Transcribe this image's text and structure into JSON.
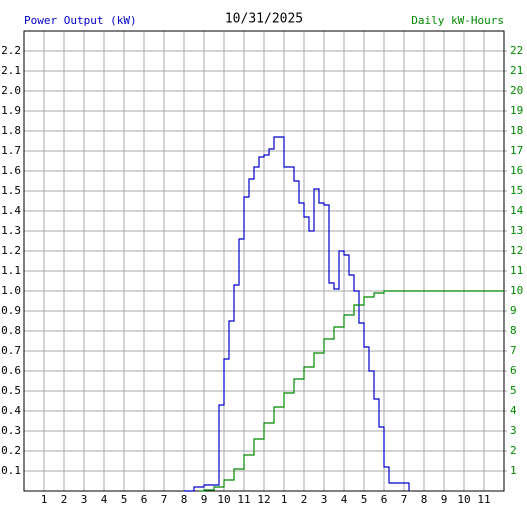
{
  "chart_data": {
    "type": "line",
    "steps": true,
    "grid": true,
    "title": "10/31/2025",
    "y_label": "Power Output (kW)",
    "y2_label": "Daily kW-Hours",
    "xlim": [
      0,
      24
    ],
    "xticks": [
      1,
      2,
      3,
      4,
      5,
      6,
      7,
      8,
      9,
      10,
      11,
      12,
      {
        "value": 13,
        "label": "1"
      },
      {
        "value": 14,
        "label": "2"
      },
      {
        "value": 15,
        "label": "3"
      },
      {
        "value": 16,
        "label": "4"
      },
      {
        "value": 17,
        "label": "5"
      },
      {
        "value": 18,
        "label": "6"
      },
      {
        "value": 19,
        "label": "7"
      },
      {
        "value": 20,
        "label": "8"
      },
      {
        "value": 21,
        "label": "9"
      },
      {
        "value": 22,
        "label": "10"
      },
      {
        "value": 23,
        "label": "11"
      }
    ],
    "ylim": [
      0,
      2.3
    ],
    "yticks": [
      0.1,
      0.2,
      0.3,
      0.4,
      0.5,
      0.6,
      0.7,
      0.8,
      0.9,
      {
        "value": 1.0,
        "label": "1.0"
      },
      1.1,
      1.2,
      1.3,
      1.4,
      1.5,
      1.6,
      1.7,
      1.8,
      1.9,
      {
        "value": 2.0,
        "label": "2.0"
      },
      2.1,
      2.2
    ],
    "y2lim": [
      0,
      23
    ],
    "y2ticks": [
      1,
      2,
      3,
      4,
      5,
      6,
      7,
      8,
      9,
      10,
      11,
      12,
      13,
      14,
      15,
      16,
      17,
      18,
      19,
      20,
      21,
      22
    ],
    "y_label_color": "#0000cc",
    "y2_label_color": "#008800",
    "series": [
      {
        "color": "#0000cc",
        "x": [
          8.0,
          8.5,
          9.0,
          9.75,
          10.0,
          10.25,
          10.5,
          10.75,
          11.0,
          11.25,
          11.5,
          11.75,
          12.0,
          12.25,
          12.5,
          13.0,
          13.5,
          13.75,
          14.0,
          14.25,
          14.5,
          14.75,
          15.0,
          15.25,
          15.5,
          15.75,
          16.0,
          16.25,
          16.5,
          16.75,
          17.0,
          17.25,
          17.5,
          17.75,
          18.0,
          18.25,
          19.25
        ],
        "values": [
          0,
          0.02,
          0.03,
          0.43,
          0.66,
          0.85,
          1.03,
          1.26,
          1.47,
          1.56,
          1.62,
          1.67,
          1.68,
          1.71,
          1.77,
          1.62,
          1.55,
          1.44,
          1.37,
          1.3,
          1.51,
          1.44,
          1.43,
          1.04,
          1.01,
          1.2,
          1.18,
          1.08,
          1.0,
          0.84,
          0.72,
          0.6,
          0.46,
          0.32,
          0.12,
          0.04,
          0
        ]
      },
      {
        "color": "#008800",
        "axis": "y2",
        "x": [
          8.75,
          9.0,
          9.5,
          10.0,
          10.5,
          11.0,
          11.5,
          12.0,
          12.5,
          13.0,
          13.5,
          14.0,
          14.5,
          15.0,
          15.5,
          16.0,
          16.5,
          17.0,
          17.5,
          18.0,
          24.0
        ],
        "values": [
          0,
          0.05,
          0.2,
          0.55,
          1.1,
          1.8,
          2.6,
          3.4,
          4.2,
          4.9,
          5.6,
          6.2,
          6.9,
          7.6,
          8.2,
          8.8,
          9.3,
          9.7,
          9.9,
          10.0,
          10.0
        ]
      }
    ]
  }
}
